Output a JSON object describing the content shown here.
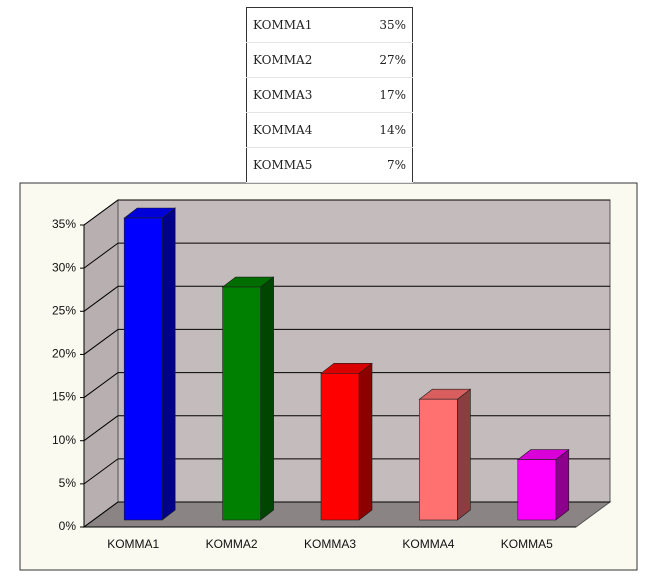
{
  "table": {
    "rows": [
      [
        "KOMMA1",
        "35%"
      ],
      [
        "KOMMA2",
        "27%"
      ],
      [
        "KOMMA3",
        "17%"
      ],
      [
        "KOMMA4",
        "14%"
      ],
      [
        "KOMMA5",
        "7%"
      ]
    ]
  },
  "chart_data": {
    "type": "bar",
    "categories": [
      "KOMMA1",
      "KOMMA2",
      "KOMMA3",
      "KOMMA4",
      "KOMMA5"
    ],
    "values": [
      35,
      27,
      17,
      14,
      7
    ],
    "colors": [
      "#0000ff",
      "#008000",
      "#ff0000",
      "#ff7070",
      "#ff00ff"
    ],
    "ylim": [
      0,
      35
    ],
    "yticks": [
      {
        "value": 0,
        "label": "0%"
      },
      {
        "value": 5,
        "label": "5%"
      },
      {
        "value": 10,
        "label": "10%"
      },
      {
        "value": 15,
        "label": "15%"
      },
      {
        "value": 20,
        "label": "20%"
      },
      {
        "value": 25,
        "label": "25%"
      },
      {
        "value": 30,
        "label": "30%"
      },
      {
        "value": 35,
        "label": "35%"
      }
    ],
    "grid": true
  }
}
